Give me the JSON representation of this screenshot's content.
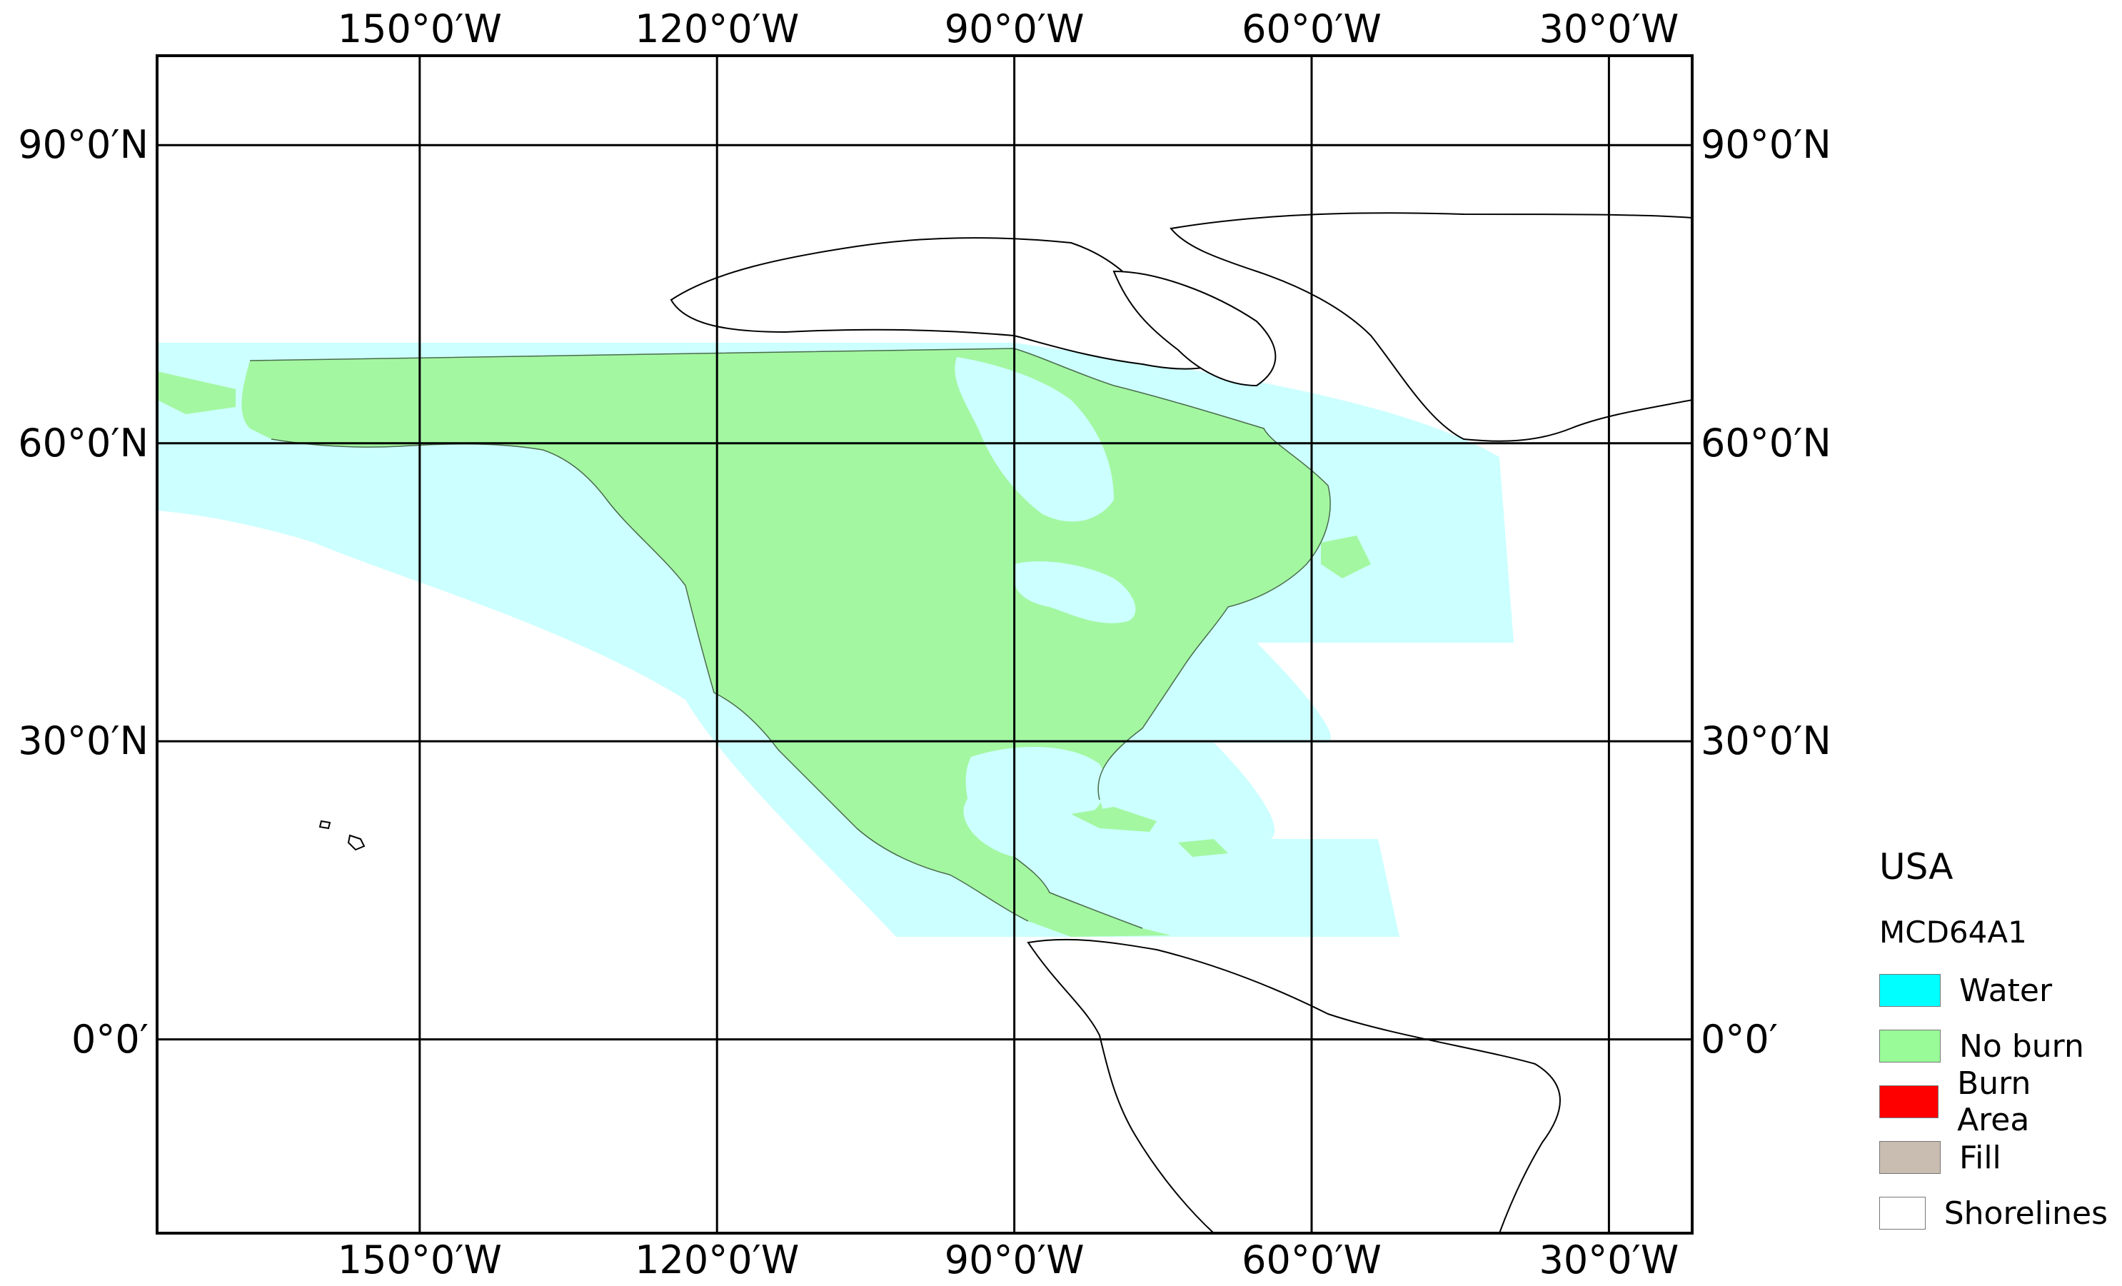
{
  "map": {
    "lon_labels": [
      {
        "lon": -150,
        "label": "150°0′W"
      },
      {
        "lon": -120,
        "label": "120°0′W"
      },
      {
        "lon": -90,
        "label": "90°0′W"
      },
      {
        "lon": -60,
        "label": "60°0′W"
      },
      {
        "lon": -30,
        "label": "30°0′W"
      }
    ],
    "lat_labels": [
      {
        "lat": 90,
        "label": "90°0′N"
      },
      {
        "lat": 60,
        "label": "60°0′N"
      },
      {
        "lat": 30,
        "label": "30°0′N"
      },
      {
        "lat": 0,
        "label": "0°0′"
      }
    ],
    "extent": {
      "lon_min": -176.5,
      "lon_max": -21.6,
      "lat_max": 99.0,
      "lat_min": -19.5
    }
  },
  "legend": {
    "title": "USA",
    "subtitle": "MCD64A1",
    "items": [
      {
        "label": "Water",
        "color": "#00ffff"
      },
      {
        "label": "No burn",
        "color": "#98fb98"
      },
      {
        "label": "Burn Area",
        "color": "#ff0000"
      },
      {
        "label": "Fill",
        "color": "#c8bdb0"
      },
      {
        "label": "Shorelines",
        "color": "#ffffff"
      }
    ]
  },
  "colors": {
    "water_tile": "#ccffff",
    "land_noburn": "#a3f7a1",
    "shoreline": "#000000",
    "grid": "#000000"
  }
}
